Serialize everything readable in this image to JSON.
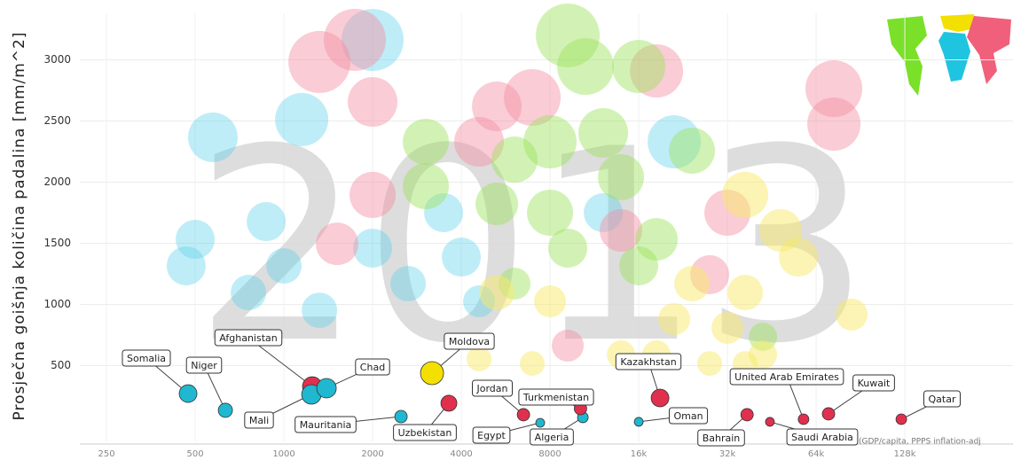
{
  "chart_data": {
    "type": "scatter",
    "ylabel": "Prosječna goišnja količina padalina [mm/m^2]",
    "watermark": "2013",
    "note": "(GDP/capita, PPPS inflation-adj",
    "xscale": "log",
    "xlim": [
      203,
      298000
    ],
    "ylim": [
      -120,
      3380
    ],
    "xticks": [
      250,
      500,
      1000,
      2000,
      4000,
      8000,
      {
        "value": 16000,
        "label": "16k"
      },
      {
        "value": 32000,
        "label": "32k"
      },
      {
        "value": 64000,
        "label": "64k"
      },
      {
        "value": 128000,
        "label": "128k"
      }
    ],
    "yticks": [
      500,
      1000,
      1500,
      2000,
      2500,
      3000
    ],
    "grid": true,
    "series": [
      {
        "color": "#5fd3ea",
        "opacity": 0.4,
        "x": [
          574,
          1149,
          871,
          500,
          466,
          1000,
          758,
          1320,
          2000,
          2639,
          4000,
          4595,
          21112,
          2000,
          3482,
          12126
        ],
        "values": [
          2366,
          2511,
          1677,
          1532,
          1315,
          1315,
          1097,
          952,
          1460,
          1170,
          1387,
          1025,
          2329,
          3162,
          1750,
          1750
        ],
        "sizes": [
          28,
          30,
          22,
          22,
          22,
          20,
          20,
          20,
          22,
          20,
          22,
          18,
          30,
          35,
          22,
          22
        ]
      },
      {
        "color": "#f58fa2",
        "opacity": 0.45,
        "x": [
          1320,
          1741,
          2000,
          2000,
          1516,
          5278,
          6964,
          18379,
          73517,
          73517,
          32000,
          13929,
          27858,
          9190,
          4595
        ],
        "values": [
          2982,
          3163,
          2655,
          1895,
          1495,
          2619,
          2692,
          2909,
          2764,
          2474,
          1750,
          1605,
          1243,
          663,
          2329
        ],
        "sizes": [
          35,
          35,
          28,
          26,
          24,
          28,
          32,
          30,
          32,
          30,
          26,
          24,
          22,
          18,
          28
        ]
      },
      {
        "color": "#9be35a",
        "opacity": 0.45,
        "x": [
          9190,
          10556,
          16000,
          8000,
          8000,
          6063,
          3031,
          3031,
          5278,
          12126,
          13929,
          16000,
          24251,
          6063,
          18379,
          9190,
          42224
        ],
        "values": [
          3199,
          2945,
          2945,
          2329,
          1750,
          2184,
          2329,
          1967,
          1822,
          2402,
          2040,
          1315,
          2257,
          1170,
          1532,
          1460,
          735
        ],
        "sizes": [
          36,
          32,
          30,
          30,
          26,
          26,
          26,
          26,
          24,
          28,
          26,
          22,
          26,
          18,
          24,
          22,
          16
        ]
      },
      {
        "color": "#f7ea6a",
        "opacity": 0.5,
        "x": [
          36758,
          48503,
          55715,
          36758,
          84449,
          24251,
          5278,
          8000,
          21112,
          32000,
          42224,
          13929,
          18379,
          4595,
          27858,
          36758,
          6964
        ],
        "values": [
          1895,
          1605,
          1387,
          1097,
          917,
          1170,
          1097,
          1025,
          880,
          808,
          590,
          590,
          590,
          554,
          517,
          517,
          517
        ],
        "sizes": [
          26,
          24,
          22,
          20,
          18,
          20,
          20,
          18,
          18,
          18,
          16,
          16,
          16,
          14,
          14,
          14,
          14
        ]
      },
      {
        "opacity": 1,
        "labels": [
          "Somalia",
          "Niger",
          "Afghanistan",
          "Mali",
          "Chad",
          "Mauritania",
          "Moldova",
          "Uzbekistan",
          "Jordan",
          "Egypt",
          "Algeria",
          "Turkmenistan",
          "Kazakhstan",
          "Oman",
          "Bahrain",
          "Saudi Arabia",
          "United Arab Emirates",
          "Kuwait",
          "Qatar"
        ],
        "colors": [
          "#1fb8d0",
          "#1fb8d0",
          "#e0304e",
          "#1fb8d0",
          "#1fb8d0",
          "#1fb8d0",
          "#f4e000",
          "#e0304e",
          "#e0304e",
          "#1fb8d0",
          "#1fb8d0",
          "#e0304e",
          "#e0304e",
          "#1fb8d0",
          "#e0304e",
          "#e0304e",
          "#e0304e",
          "#e0304e",
          "#e0304e"
        ],
        "x": [
          473,
          633,
          1248,
          1240,
          1395,
          2497,
          3182,
          3630,
          6500,
          7410,
          10340,
          10150,
          18900,
          16000,
          37300,
          44600,
          58000,
          70500,
          124500
        ],
        "values": [
          271,
          134,
          329,
          264,
          315,
          83,
          438,
          192,
          98,
          32,
          76,
          148,
          235,
          40,
          98,
          40,
          61,
          105,
          61
        ],
        "sizes": [
          10,
          8,
          11,
          11,
          11,
          7,
          13,
          9,
          7,
          5,
          6,
          7,
          10,
          5,
          7,
          5,
          6,
          7,
          6
        ]
      }
    ]
  }
}
